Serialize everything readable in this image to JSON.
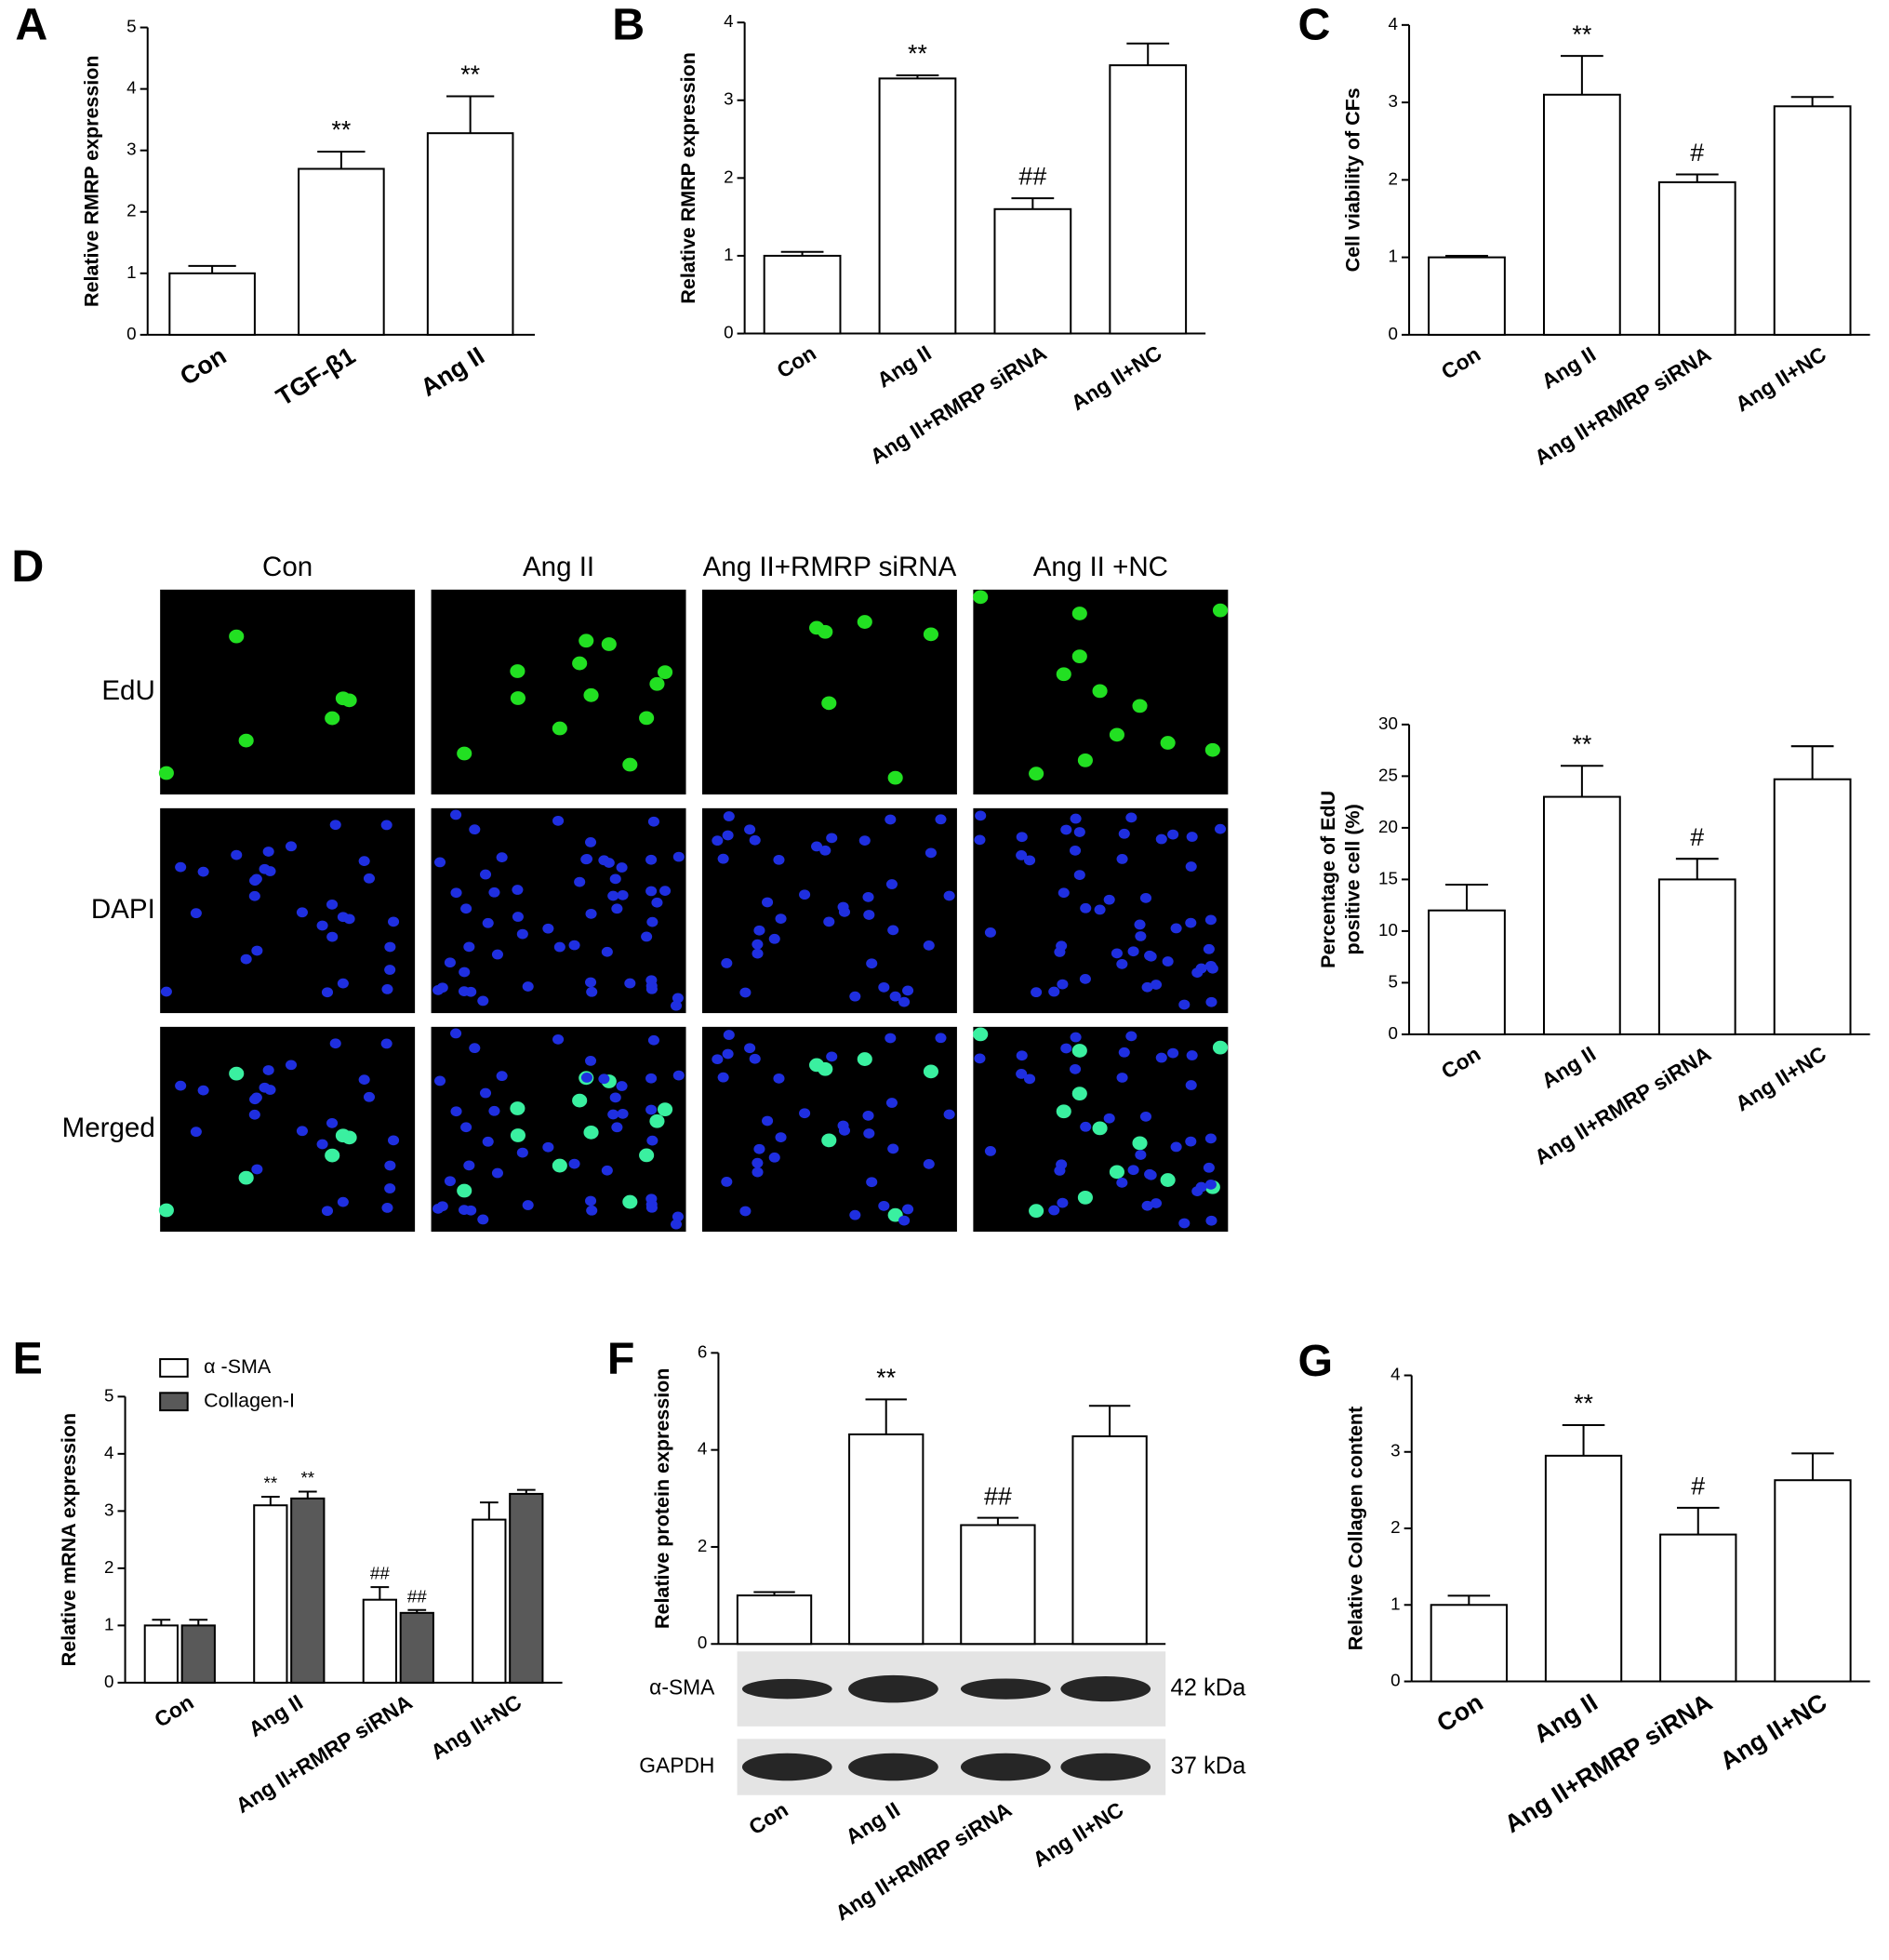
{
  "chart_data": [
    {
      "type": "bar",
      "panel": "A",
      "ylabel": [
        "Relative RMRP expression"
      ],
      "categories": [
        "Con",
        "TGF-β1",
        "Ang II"
      ],
      "values": [
        1.0,
        2.7,
        3.28
      ],
      "errors": [
        0.12,
        0.28,
        0.6
      ],
      "annotations": [
        null,
        "**",
        "**"
      ],
      "color": "#ffffff",
      "ylim": [
        0,
        5
      ],
      "yticks": [
        0,
        1,
        2,
        3,
        4,
        5
      ]
    },
    {
      "type": "bar",
      "panel": "B",
      "ylabel": [
        "Relative RMRP expression"
      ],
      "categories": [
        "Con",
        "Ang II",
        "Ang II+RMRP siRNA",
        "Ang II+NC"
      ],
      "values": [
        1.0,
        3.28,
        1.6,
        3.45
      ],
      "errors": [
        0.05,
        0.04,
        0.14,
        0.28
      ],
      "annotations": [
        null,
        "**",
        "##",
        null
      ],
      "color": "#ffffff",
      "ylim": [
        0,
        4
      ],
      "yticks": [
        0,
        1,
        2,
        3,
        4
      ]
    },
    {
      "type": "bar",
      "panel": "C",
      "ylabel": [
        "Cell viability of CFs"
      ],
      "categories": [
        "Con",
        "Ang II",
        "Ang II+RMRP siRNA",
        "Ang II+NC"
      ],
      "values": [
        1.0,
        3.1,
        1.97,
        2.95
      ],
      "errors": [
        0.02,
        0.5,
        0.1,
        0.12
      ],
      "annotations": [
        null,
        "**",
        "#",
        null
      ],
      "color": "#ffffff",
      "ylim": [
        0,
        4
      ],
      "yticks": [
        0,
        1,
        2,
        3,
        4
      ]
    },
    {
      "type": "bar",
      "ylabel": [
        "Percentage of EdU",
        "positive cell (%)"
      ],
      "categories": [
        "Con",
        "Ang II",
        "Ang II+RMRP siRNA",
        "Ang II+NC"
      ],
      "values": [
        12,
        23,
        15,
        24.7
      ],
      "errors": [
        2.5,
        3,
        2,
        3.2
      ],
      "annotations": [
        null,
        "**",
        "#",
        null
      ],
      "color": "#ffffff",
      "ylim": [
        0,
        30
      ],
      "yticks": [
        0,
        5,
        10,
        15,
        20,
        25,
        30
      ]
    },
    {
      "type": "grouped_bar",
      "panel": "E",
      "ylabel": [
        "Relative mRNA expression"
      ],
      "categories": [
        "Con",
        "Ang II",
        "Ang II+RMRP siRNA",
        "Ang II+NC"
      ],
      "series": [
        {
          "name": "α -SMA",
          "color": "#ffffff",
          "values": [
            1.0,
            3.1,
            1.45,
            2.85
          ],
          "errors": [
            0.1,
            0.15,
            0.22,
            0.3
          ],
          "annotations": [
            null,
            "**",
            "##",
            null
          ]
        },
        {
          "name": "Collagen-I",
          "color": "#595959",
          "values": [
            1.0,
            3.22,
            1.22,
            3.3
          ],
          "errors": [
            0.1,
            0.12,
            0.05,
            0.07
          ],
          "annotations": [
            null,
            "**",
            "##",
            null
          ]
        }
      ],
      "ylim": [
        0,
        5
      ],
      "yticks": [
        0,
        1,
        2,
        3,
        4,
        5
      ]
    },
    {
      "type": "bar",
      "panel": "F",
      "ylabel": [
        "Relative protein expression"
      ],
      "categories": [
        "Con",
        "Ang II",
        "Ang II+RMRP siRNA",
        "Ang II+NC"
      ],
      "values": [
        1.0,
        4.32,
        2.45,
        4.28
      ],
      "errors": [
        0.07,
        0.72,
        0.15,
        0.63
      ],
      "annotations": [
        null,
        "**",
        "##",
        null
      ],
      "color": "#ffffff",
      "ylim": [
        0,
        6
      ],
      "yticks": [
        0,
        2,
        4,
        6
      ]
    },
    {
      "type": "bar",
      "panel": "G",
      "ylabel": [
        "Relative Collagen content"
      ],
      "categories": [
        "Con",
        "Ang II",
        "Ang II+RMRP siRNA",
        "Ang II+NC"
      ],
      "values": [
        1.0,
        2.95,
        1.92,
        2.63
      ],
      "errors": [
        0.12,
        0.4,
        0.35,
        0.35
      ],
      "annotations": [
        null,
        "**",
        "#",
        null
      ],
      "color": "#ffffff",
      "ylim": [
        0,
        4
      ],
      "yticks": [
        0,
        1,
        2,
        3,
        4
      ]
    }
  ],
  "micrographs": {
    "panel": "D",
    "columns": [
      "Con",
      "Ang II",
      "Ang II+RMRP siRNA",
      "Ang II +NC"
    ],
    "rows": [
      "EdU",
      "DAPI",
      "Merged"
    ]
  },
  "blot": {
    "rows": [
      {
        "name": "α-SMA",
        "size": "42 kDa"
      },
      {
        "name": "GAPDH",
        "size": "37 kDa"
      }
    ]
  }
}
